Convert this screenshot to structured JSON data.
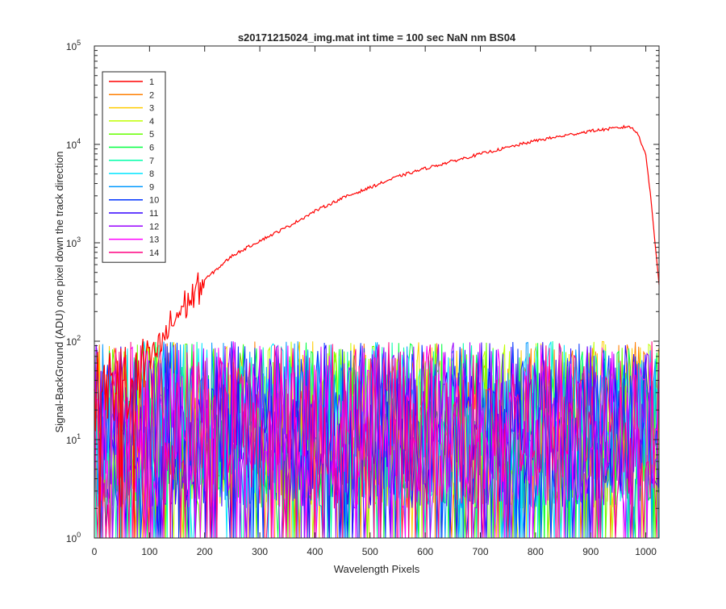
{
  "chart_data": {
    "type": "line",
    "title": "s20171215024_img.mat int time = 100 sec  NaN nm BS04",
    "xlabel": "Wavelength Pixels",
    "ylabel": "Signal-BackGround (ADU) one pixel down the track direction",
    "xlim": [
      0,
      1024
    ],
    "ylim": [
      1,
      100000
    ],
    "yscale": "log",
    "grid": false,
    "legend_position": "top-left",
    "x_ticks": [
      0,
      100,
      200,
      300,
      400,
      500,
      600,
      700,
      800,
      900,
      1000
    ],
    "x_tick_labels": [
      "0",
      "100",
      "200",
      "300",
      "400",
      "500",
      "600",
      "700",
      "800",
      "900",
      "1000"
    ],
    "y_ticks": [
      1,
      10,
      100,
      1000,
      10000,
      100000
    ],
    "y_tick_labels": [
      {
        "base": "10",
        "exp": "0"
      },
      {
        "base": "10",
        "exp": "1"
      },
      {
        "base": "10",
        "exp": "2"
      },
      {
        "base": "10",
        "exp": "3"
      },
      {
        "base": "10",
        "exp": "4"
      },
      {
        "base": "10",
        "exp": "5"
      }
    ],
    "series": [
      {
        "name": "1",
        "color": "#ff0000",
        "kind": "signal",
        "x": [
          0,
          50,
          100,
          120,
          140,
          160,
          180,
          200,
          250,
          300,
          350,
          400,
          450,
          500,
          550,
          600,
          650,
          700,
          750,
          800,
          850,
          900,
          950,
          970,
          985,
          1000,
          1010,
          1024
        ],
        "y": [
          30,
          40,
          60,
          90,
          150,
          220,
          290,
          420,
          740,
          1050,
          1450,
          2100,
          2850,
          3650,
          4700,
          5700,
          6750,
          8000,
          9300,
          10900,
          12200,
          13700,
          14700,
          15300,
          13000,
          8000,
          2500,
          380
        ]
      },
      {
        "name": "2",
        "color": "#ff7f00",
        "kind": "noise"
      },
      {
        "name": "3",
        "color": "#ffcc00",
        "kind": "noise"
      },
      {
        "name": "4",
        "color": "#bfff00",
        "kind": "noise"
      },
      {
        "name": "5",
        "color": "#66ff00",
        "kind": "noise"
      },
      {
        "name": "6",
        "color": "#00ff40",
        "kind": "noise"
      },
      {
        "name": "7",
        "color": "#00ffaa",
        "kind": "noise"
      },
      {
        "name": "8",
        "color": "#00e5ff",
        "kind": "noise"
      },
      {
        "name": "9",
        "color": "#0099ff",
        "kind": "noise"
      },
      {
        "name": "10",
        "color": "#0033ff",
        "kind": "noise"
      },
      {
        "name": "11",
        "color": "#3300ff",
        "kind": "noise"
      },
      {
        "name": "12",
        "color": "#9900ff",
        "kind": "noise"
      },
      {
        "name": "13",
        "color": "#ff00ff",
        "kind": "noise"
      },
      {
        "name": "14",
        "color": "#ff0080",
        "kind": "noise"
      }
    ],
    "noise_range": [
      2,
      100
    ]
  }
}
